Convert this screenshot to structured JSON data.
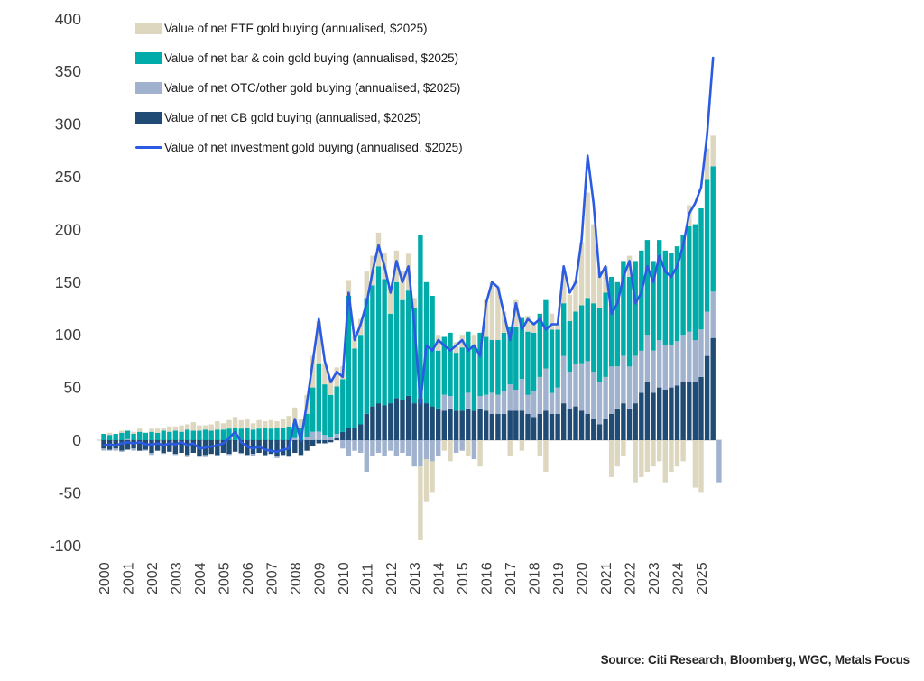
{
  "chart_data": {
    "type": "bar",
    "stacked": true,
    "line_overlay": true,
    "title": "",
    "xlabel": "",
    "ylabel": "",
    "ylim": [
      -100,
      400
    ],
    "y_ticks": [
      400,
      350,
      300,
      250,
      200,
      150,
      100,
      50,
      0,
      -50,
      -100
    ],
    "x_year_labels": [
      "2000",
      "2001",
      "2002",
      "2003",
      "2004",
      "2005",
      "2006",
      "2007",
      "2008",
      "2009",
      "2010",
      "2011",
      "2012",
      "2013",
      "2014",
      "2015",
      "2016",
      "2017",
      "2018",
      "2019",
      "2020",
      "2021",
      "2022",
      "2023",
      "2024",
      "2025"
    ],
    "grid": false,
    "legend_position": "top-left",
    "source": "Source: Citi Research, Bloomberg, WGC, Metals Focus",
    "categories": [
      "2000Q1",
      "2000Q2",
      "2000Q3",
      "2000Q4",
      "2001Q1",
      "2001Q2",
      "2001Q3",
      "2001Q4",
      "2002Q1",
      "2002Q2",
      "2002Q3",
      "2002Q4",
      "2003Q1",
      "2003Q2",
      "2003Q3",
      "2003Q4",
      "2004Q1",
      "2004Q2",
      "2004Q3",
      "2004Q4",
      "2005Q1",
      "2005Q2",
      "2005Q3",
      "2005Q4",
      "2006Q1",
      "2006Q2",
      "2006Q3",
      "2006Q4",
      "2007Q1",
      "2007Q2",
      "2007Q3",
      "2007Q4",
      "2008Q1",
      "2008Q2",
      "2008Q3",
      "2008Q4",
      "2009Q1",
      "2009Q2",
      "2009Q3",
      "2009Q4",
      "2010Q1",
      "2010Q2",
      "2010Q3",
      "2010Q4",
      "2011Q1",
      "2011Q2",
      "2011Q3",
      "2011Q4",
      "2012Q1",
      "2012Q2",
      "2012Q3",
      "2012Q4",
      "2013Q1",
      "2013Q2",
      "2013Q3",
      "2013Q4",
      "2014Q1",
      "2014Q2",
      "2014Q3",
      "2014Q4",
      "2015Q1",
      "2015Q2",
      "2015Q3",
      "2015Q4",
      "2016Q1",
      "2016Q2",
      "2016Q3",
      "2016Q4",
      "2017Q1",
      "2017Q2",
      "2017Q3",
      "2017Q4",
      "2018Q1",
      "2018Q2",
      "2018Q3",
      "2018Q4",
      "2019Q1",
      "2019Q2",
      "2019Q3",
      "2019Q4",
      "2020Q1",
      "2020Q2",
      "2020Q3",
      "2020Q4",
      "2021Q1",
      "2021Q2",
      "2021Q3",
      "2021Q4",
      "2022Q1",
      "2022Q2",
      "2022Q3",
      "2022Q4",
      "2023Q1",
      "2023Q2",
      "2023Q3",
      "2023Q4",
      "2024Q1",
      "2024Q2",
      "2024Q3",
      "2024Q4",
      "2025Q1",
      "2025Q2",
      "2025Q3",
      "2025Q4"
    ],
    "stack_order_bottom_to_top": [
      "cb",
      "otc",
      "barcoin",
      "etf"
    ],
    "series": [
      {
        "key": "etf",
        "name": "Value of net ETF gold buying (annualised, $2025)",
        "type": "bar",
        "color": "#DCD7BE",
        "values": [
          0,
          2,
          0,
          2,
          0,
          2,
          3,
          0,
          3,
          4,
          3,
          5,
          4,
          6,
          5,
          8,
          5,
          4,
          6,
          8,
          6,
          8,
          10,
          8,
          8,
          6,
          8,
          6,
          8,
          6,
          8,
          10,
          15,
          8,
          18,
          30,
          40,
          20,
          15,
          18,
          12,
          15,
          12,
          15,
          25,
          28,
          32,
          25,
          25,
          30,
          28,
          35,
          10,
          -70,
          -40,
          -30,
          15,
          -10,
          -20,
          10,
          12,
          -15,
          10,
          -25,
          35,
          55,
          50,
          20,
          -15,
          25,
          -10,
          15,
          10,
          -15,
          -30,
          15,
          5,
          30,
          25,
          30,
          60,
          100,
          75,
          35,
          25,
          -35,
          -25,
          -15,
          20,
          -40,
          -35,
          -30,
          -25,
          -20,
          -40,
          -30,
          -25,
          -20,
          20,
          -45,
          -50,
          30,
          29,
          0
        ]
      },
      {
        "key": "barcoin",
        "name": "Value of net bar & coin gold buying (annualised, $2025)",
        "type": "bar",
        "color": "#00ACA9",
        "values": [
          6,
          5,
          6,
          7,
          8,
          6,
          8,
          7,
          8,
          7,
          9,
          8,
          9,
          8,
          10,
          9,
          9,
          10,
          9,
          10,
          10,
          11,
          12,
          11,
          12,
          10,
          11,
          12,
          11,
          12,
          12,
          13,
          14,
          12,
          22,
          42,
          65,
          48,
          40,
          45,
          50,
          125,
          75,
          85,
          110,
          115,
          130,
          120,
          85,
          110,
          95,
          100,
          90,
          155,
          115,
          105,
          55,
          55,
          60,
          55,
          60,
          58,
          62,
          60,
          55,
          50,
          52,
          55,
          55,
          60,
          58,
          60,
          55,
          60,
          65,
          60,
          55,
          50,
          48,
          50,
          55,
          60,
          65,
          70,
          80,
          85,
          80,
          90,
          85,
          90,
          95,
          90,
          85,
          95,
          90,
          88,
          90,
          95,
          100,
          110,
          115,
          125,
          119,
          0
        ]
      },
      {
        "key": "otc",
        "name": "Value of net OTC/other gold buying (annualised, $2025)",
        "type": "bar",
        "color": "#A0B2CE",
        "values": [
          -2,
          -1,
          -2,
          -1,
          1,
          -2,
          0,
          -1,
          -2,
          0,
          -1,
          0,
          -1,
          0,
          -2,
          0,
          -1,
          -2,
          0,
          -1,
          0,
          -1,
          0,
          -1,
          0,
          -2,
          0,
          -1,
          0,
          -2,
          0,
          -1,
          2,
          0,
          3,
          8,
          8,
          5,
          3,
          4,
          -8,
          -15,
          -10,
          -12,
          -30,
          -15,
          -12,
          -15,
          -10,
          -15,
          -12,
          -15,
          -25,
          -25,
          -18,
          -20,
          -15,
          15,
          12,
          -12,
          -10,
          15,
          -18,
          12,
          15,
          20,
          18,
          22,
          25,
          20,
          30,
          18,
          25,
          35,
          40,
          20,
          25,
          45,
          35,
          40,
          45,
          50,
          45,
          40,
          40,
          45,
          40,
          45,
          40,
          45,
          40,
          45,
          40,
          45,
          42,
          40,
          42,
          45,
          48,
          40,
          45,
          42,
          44,
          -40
        ]
      },
      {
        "key": "cb",
        "name": "Value of net CB gold buying (annualised, $2025)",
        "type": "bar",
        "color": "#1F4B75",
        "values": [
          -8,
          -9,
          -8,
          -10,
          -9,
          -8,
          -10,
          -9,
          -12,
          -10,
          -12,
          -11,
          -13,
          -12,
          -14,
          -12,
          -15,
          -14,
          -13,
          -14,
          -12,
          -13,
          -11,
          -12,
          -14,
          -13,
          -12,
          -14,
          -13,
          -15,
          -14,
          -15,
          -12,
          -14,
          -10,
          -6,
          -3,
          -3,
          -2,
          2,
          8,
          12,
          12,
          15,
          25,
          32,
          35,
          33,
          35,
          40,
          38,
          42,
          35,
          40,
          35,
          32,
          30,
          28,
          30,
          28,
          28,
          30,
          28,
          30,
          28,
          25,
          25,
          25,
          28,
          28,
          28,
          25,
          22,
          25,
          28,
          25,
          25,
          35,
          30,
          32,
          28,
          25,
          20,
          15,
          20,
          25,
          30,
          35,
          30,
          35,
          45,
          55,
          45,
          50,
          48,
          50,
          52,
          55,
          55,
          55,
          60,
          80,
          97,
          0
        ]
      },
      {
        "key": "investment",
        "name": "Value of net investment gold buying (annualised, $2025)",
        "type": "line",
        "color": "#2B5BE2",
        "values": [
          -5,
          -4,
          -5,
          -3,
          -2,
          -3,
          -2,
          -4,
          -4,
          -3,
          -5,
          -3,
          -4,
          -2,
          -5,
          -3,
          -8,
          -7,
          -6,
          -5,
          -3,
          2,
          8,
          -2,
          -6,
          -8,
          -6,
          -9,
          -10,
          -11,
          -9,
          -8,
          20,
          0,
          35,
          75,
          115,
          75,
          55,
          65,
          60,
          140,
          95,
          110,
          130,
          160,
          185,
          165,
          140,
          170,
          150,
          165,
          110,
          35,
          90,
          85,
          95,
          90,
          85,
          90,
          95,
          85,
          90,
          80,
          130,
          150,
          145,
          120,
          95,
          130,
          105,
          115,
          110,
          115,
          105,
          110,
          110,
          165,
          140,
          150,
          190,
          270,
          225,
          155,
          165,
          120,
          130,
          155,
          170,
          130,
          140,
          165,
          150,
          175,
          160,
          155,
          165,
          185,
          215,
          225,
          240,
          290,
          363,
          null
        ]
      }
    ]
  },
  "axis_style": {
    "tick_color": "#3d3d3d",
    "zero_line_color": "#d9d9d9"
  }
}
